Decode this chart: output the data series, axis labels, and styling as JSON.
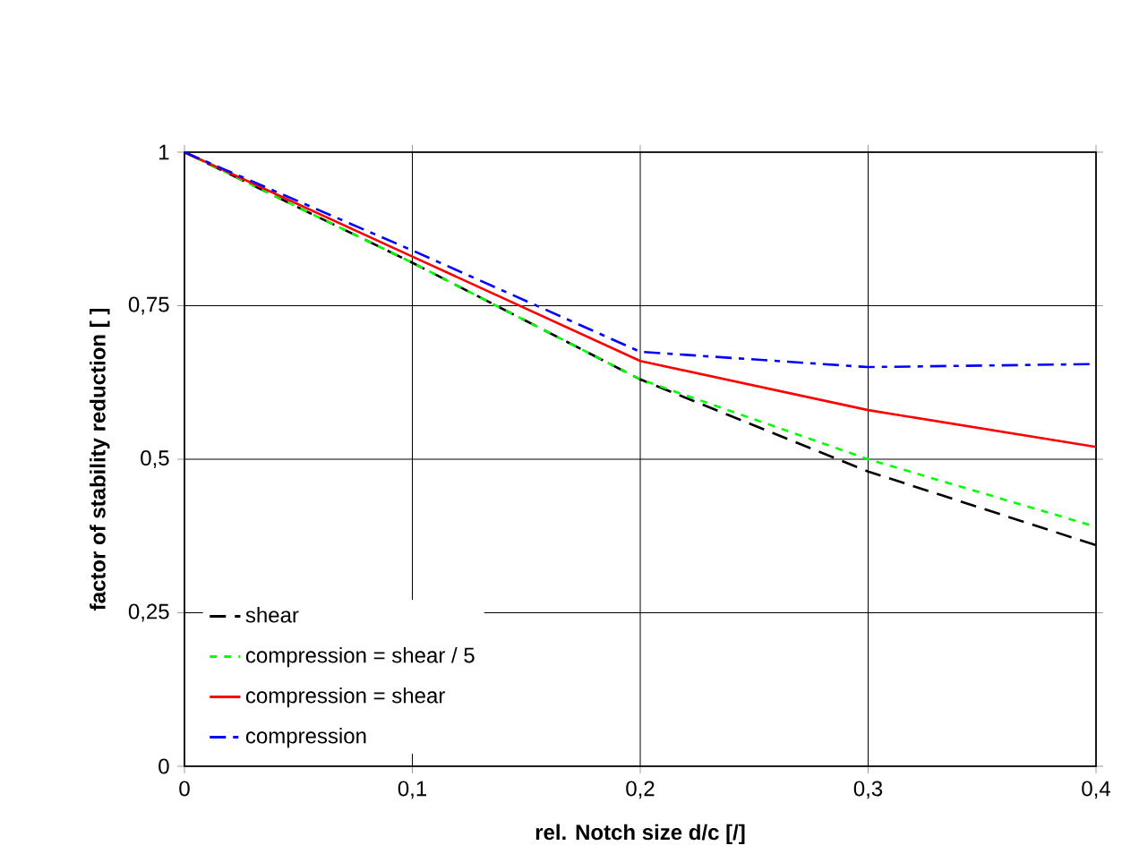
{
  "chart_data": {
    "type": "line",
    "xlabel": "rel. Notch size d/c [/]",
    "ylabel": "factor of stability reduction [ ]",
    "x": [
      0,
      0.1,
      0.2,
      0.3,
      0.4
    ],
    "series": [
      {
        "name": "shear",
        "color": "#000000",
        "line_style": "dashed",
        "values": [
          1,
          0.82,
          0.63,
          0.48,
          0.36
        ]
      },
      {
        "name": "compression = shear / 5",
        "color": "#00ff00",
        "line_style": "dotted",
        "values": [
          1,
          0.82,
          0.63,
          0.5,
          0.39
        ]
      },
      {
        "name": "compression = shear",
        "color": "#ff0000",
        "line_style": "solid",
        "values": [
          1,
          0.83,
          0.66,
          0.58,
          0.52
        ]
      },
      {
        "name": "compression",
        "color": "#0000ff",
        "line_style": "dashdot",
        "values": [
          1,
          0.84,
          0.675,
          0.65,
          0.655
        ]
      }
    ],
    "xlim": [
      0,
      0.4
    ],
    "ylim": [
      0,
      1
    ],
    "xticks": [
      0,
      {
        "value": 0.1,
        "label": "0,1"
      },
      {
        "value": 0.2,
        "label": "0,2"
      },
      {
        "value": 0.3,
        "label": "0,3"
      },
      {
        "value": 0.4,
        "label": "0,4"
      }
    ],
    "yticks": [
      0,
      {
        "value": 0.25,
        "label": "0,25"
      },
      {
        "value": 0.5,
        "label": "0,5"
      },
      {
        "value": 0.75,
        "label": "0,75"
      },
      1
    ],
    "grid": true,
    "legend": "bottom left",
    "marker": "none"
  }
}
